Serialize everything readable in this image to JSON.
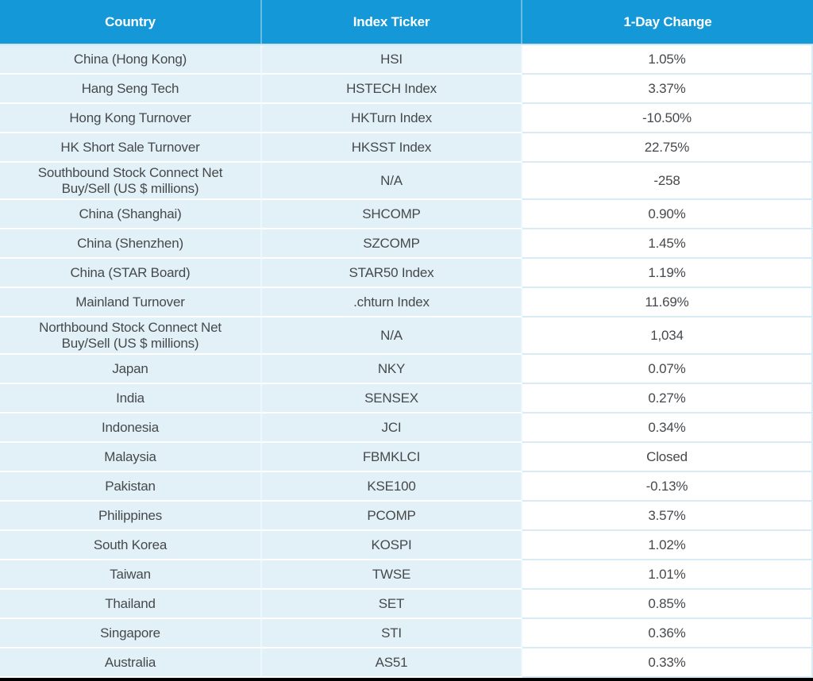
{
  "chart_data": {
    "type": "table",
    "columns": [
      "Country",
      "Index Ticker",
      "1-Day Change"
    ],
    "rows": [
      [
        "China (Hong Kong)",
        "HSI",
        "1.05%"
      ],
      [
        "Hang Seng Tech",
        "HSTECH Index",
        "3.37%"
      ],
      [
        "Hong Kong Turnover",
        "HKTurn Index",
        "-10.50%"
      ],
      [
        "HK Short Sale Turnover",
        "HKSST Index",
        "22.75%"
      ],
      [
        "Southbound Stock Connect Net Buy/Sell (US $ millions)",
        "N/A",
        "-258"
      ],
      [
        "China (Shanghai)",
        "SHCOMP",
        "0.90%"
      ],
      [
        "China (Shenzhen)",
        "SZCOMP",
        "1.45%"
      ],
      [
        "China (STAR Board)",
        "STAR50 Index",
        "1.19%"
      ],
      [
        "Mainland Turnover",
        ".chturn Index",
        "11.69%"
      ],
      [
        "Northbound Stock Connect Net Buy/Sell (US $ millions)",
        "N/A",
        "1,034"
      ],
      [
        "Japan",
        "NKY",
        "0.07%"
      ],
      [
        "India",
        "SENSEX",
        "0.27%"
      ],
      [
        "Indonesia",
        "JCI",
        "0.34%"
      ],
      [
        "Malaysia",
        "FBMKLCI",
        "Closed"
      ],
      [
        "Pakistan",
        "KSE100",
        "-0.13%"
      ],
      [
        "Philippines",
        "PCOMP",
        "3.57%"
      ],
      [
        "South Korea",
        "KOSPI",
        "1.02%"
      ],
      [
        "Taiwan",
        "TWSE",
        "1.01%"
      ],
      [
        "Thailand",
        "SET",
        "0.85%"
      ],
      [
        "Singapore",
        "STI",
        "0.36%"
      ],
      [
        "Australia",
        "AS51",
        "0.33%"
      ]
    ],
    "two_line_row_indices": [
      4,
      9
    ],
    "title": "",
    "legend_position": "none",
    "grid": true
  },
  "colors": {
    "header_bg": "#1498D7",
    "header_text": "#FFFFFF",
    "header_col_sep": "rgba(255,255,255,0.35)",
    "header_bottom_line": "#CBE7F4",
    "row_bg": "#E2F1F7",
    "row_sep": "#FFFFFF",
    "col_sep": "#EEF7FB",
    "change_bg": "#FFFFFF",
    "change_sep": "#D9EBF4",
    "text": "#46494C",
    "bottom_bar": "#000000"
  }
}
